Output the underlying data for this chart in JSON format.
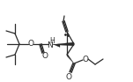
{
  "line_color": "#2a2a2a",
  "bond_lw": 0.9,
  "figsize": [
    1.51,
    0.93
  ],
  "dpi": 100,
  "xlim": [
    0,
    151
  ],
  "ylim": [
    0,
    93
  ]
}
